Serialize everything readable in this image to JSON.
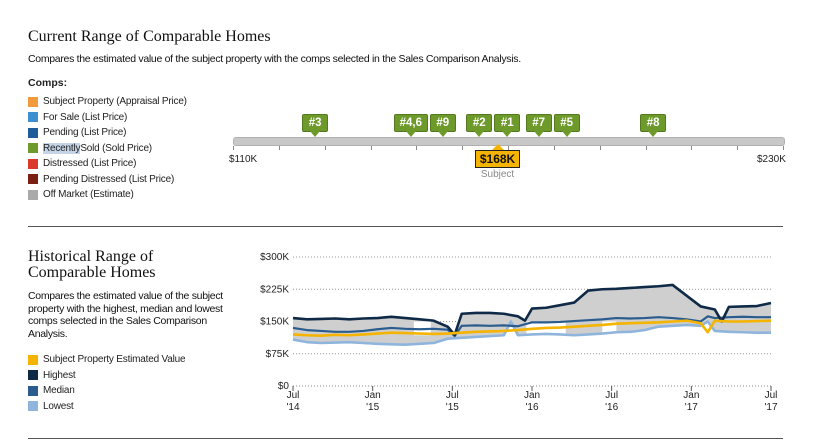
{
  "current": {
    "title": "Current Range of Comparable Homes",
    "subtitle": "Compares the estimated value of the subject property with the comps selected in the Sales Comparison Analysis.",
    "legend_title": "Comps:",
    "legend": [
      {
        "label": "Subject Property (Appraisal Price)",
        "color": "#f39a3c"
      },
      {
        "label": "For Sale (List Price)",
        "color": "#3d8fd1"
      },
      {
        "label": "Pending (List Price)",
        "color": "#1f5c99"
      },
      {
        "label_hl": "Recently",
        "label_rest": " Sold (Sold Price)",
        "color": "#6e9a2b"
      },
      {
        "label": "Distressed (List Price)",
        "color": "#d93a2b"
      },
      {
        "label": "Pending Distressed (List Price)",
        "color": "#7a1f12"
      },
      {
        "label": "Off Market (Estimate)",
        "color": "#aaaaaa"
      }
    ],
    "range_min_label": "$110K",
    "range_max_label": "$230K",
    "range_min": 110,
    "range_max": 230,
    "pins": [
      {
        "label": "#3",
        "value": 128
      },
      {
        "labels": [
          "#4,6",
          "#9"
        ],
        "value": 152
      },
      {
        "labels": [
          "#2",
          "#1"
        ],
        "value": 167
      },
      {
        "labels": [
          "#7",
          "#5"
        ],
        "value": 180
      },
      {
        "label": "#8",
        "value": 202
      }
    ],
    "subject": {
      "label": "$168K",
      "caption": "Subject",
      "value": 168
    }
  },
  "historical": {
    "title_line1": "Historical Range of",
    "title_line2": "Comparable Homes",
    "subtitle": "Compares the estimated value of the subject property with the highest, median and lowest comps selected in the Sales Comparison Analysis.",
    "legend": [
      {
        "label": "Subject Property Estimated Value",
        "color": "#f5b400"
      },
      {
        "label": "Highest",
        "color": "#0e2a47"
      },
      {
        "label": "Median",
        "color": "#2a5c8e"
      },
      {
        "label": "Lowest",
        "color": "#8fb5dc"
      }
    ]
  },
  "chart_data": {
    "type": "line",
    "ylim": [
      0,
      300
    ],
    "y_ticks": [
      0,
      75,
      150,
      225,
      300
    ],
    "y_tick_labels": [
      "$0",
      "$75K",
      "$150K",
      "$225K",
      "$300K"
    ],
    "x_ticks": [
      {
        "month": "Jul",
        "year": "'14"
      },
      {
        "month": "Jan",
        "year": "'15"
      },
      {
        "month": "Jul",
        "year": "'15"
      },
      {
        "month": "Jan",
        "year": "'16"
      },
      {
        "month": "Jul",
        "year": "'16"
      },
      {
        "month": "Jan",
        "year": "'17"
      },
      {
        "month": "Jul",
        "year": "'17"
      }
    ],
    "series": [
      {
        "name": "Highest",
        "color": "#0e2a47",
        "values": [
          [
            0,
            158
          ],
          [
            1,
            155
          ],
          [
            2,
            156
          ],
          [
            3,
            157
          ],
          [
            4,
            155
          ],
          [
            5,
            157
          ],
          [
            6,
            158
          ],
          [
            7,
            161
          ],
          [
            8,
            158
          ],
          [
            9,
            155
          ],
          [
            10,
            152
          ],
          [
            11,
            138
          ],
          [
            11.5,
            119
          ],
          [
            12,
            168
          ],
          [
            13,
            170
          ],
          [
            14,
            170
          ],
          [
            15,
            168
          ],
          [
            16,
            162
          ],
          [
            16.5,
            152
          ],
          [
            17,
            180
          ],
          [
            18,
            182
          ],
          [
            19,
            188
          ],
          [
            20,
            194
          ],
          [
            21,
            222
          ],
          [
            22,
            225
          ],
          [
            23,
            226
          ],
          [
            24,
            228
          ],
          [
            25,
            230
          ],
          [
            26,
            232
          ],
          [
            27,
            235
          ],
          [
            28,
            210
          ],
          [
            29,
            185
          ],
          [
            30,
            178
          ],
          [
            30.5,
            150
          ],
          [
            31,
            184
          ],
          [
            32,
            185
          ],
          [
            33,
            186
          ],
          [
            34,
            193
          ]
        ]
      },
      {
        "name": "Median",
        "color": "#2a5c8e",
        "values": [
          [
            0,
            135
          ],
          [
            1,
            130
          ],
          [
            2,
            128
          ],
          [
            3,
            126
          ],
          [
            4,
            126
          ],
          [
            5,
            128
          ],
          [
            6,
            132
          ],
          [
            7,
            135
          ],
          [
            8,
            133
          ],
          [
            9,
            132
          ],
          [
            10,
            133
          ],
          [
            11,
            131
          ],
          [
            11.5,
            116
          ],
          [
            12,
            140
          ],
          [
            13,
            141
          ],
          [
            14,
            140
          ],
          [
            15,
            141
          ],
          [
            16,
            139
          ],
          [
            17,
            148
          ],
          [
            18,
            148
          ],
          [
            19,
            149
          ],
          [
            20,
            151
          ],
          [
            21,
            153
          ],
          [
            22,
            155
          ],
          [
            23,
            158
          ],
          [
            24,
            157
          ],
          [
            25,
            158
          ],
          [
            26,
            160
          ],
          [
            27,
            158
          ],
          [
            28,
            155
          ],
          [
            29,
            150
          ],
          [
            29.5,
            162
          ],
          [
            30,
            158
          ],
          [
            31,
            160
          ],
          [
            32,
            161
          ],
          [
            33,
            160
          ],
          [
            34,
            160
          ]
        ]
      },
      {
        "name": "Lowest",
        "color": "#8fb5dc",
        "values": [
          [
            0,
            108
          ],
          [
            1,
            102
          ],
          [
            2,
            100
          ],
          [
            3,
            101
          ],
          [
            4,
            102
          ],
          [
            5,
            100
          ],
          [
            6,
            98
          ],
          [
            7,
            97
          ],
          [
            8,
            96
          ],
          [
            9,
            98
          ],
          [
            10,
            100
          ],
          [
            11,
            110
          ],
          [
            12,
            112
          ],
          [
            13,
            114
          ],
          [
            14,
            116
          ],
          [
            15,
            118
          ],
          [
            15.5,
            150
          ],
          [
            16,
            118
          ],
          [
            17,
            120
          ],
          [
            18,
            121
          ],
          [
            19,
            120
          ],
          [
            20,
            118
          ],
          [
            21,
            120
          ],
          [
            22,
            122
          ],
          [
            23,
            125
          ],
          [
            24,
            126
          ],
          [
            25,
            130
          ],
          [
            26,
            138
          ],
          [
            27,
            140
          ],
          [
            28,
            142
          ],
          [
            29,
            140
          ],
          [
            29.5,
            150
          ],
          [
            30,
            128
          ],
          [
            31,
            126
          ],
          [
            32,
            125
          ],
          [
            33,
            124
          ],
          [
            34,
            124
          ]
        ]
      },
      {
        "name": "Subject Property Estimated Value",
        "color": "#f5b400",
        "values": [
          [
            0,
            120
          ],
          [
            1,
            118
          ],
          [
            2,
            117
          ],
          [
            3,
            119
          ],
          [
            4,
            118
          ],
          [
            5,
            120
          ],
          [
            6,
            122
          ],
          [
            7,
            124
          ],
          [
            8,
            123
          ],
          [
            9,
            122
          ],
          [
            10,
            121
          ],
          [
            11,
            122
          ],
          [
            12,
            124
          ],
          [
            13,
            126
          ],
          [
            14,
            127
          ],
          [
            15,
            128
          ],
          [
            16,
            130
          ],
          [
            17,
            133
          ],
          [
            18,
            135
          ],
          [
            19,
            136
          ],
          [
            20,
            138
          ],
          [
            21,
            140
          ],
          [
            22,
            142
          ],
          [
            23,
            145
          ],
          [
            24,
            146
          ],
          [
            25,
            147
          ],
          [
            26,
            148
          ],
          [
            27,
            150
          ],
          [
            28,
            152
          ],
          [
            29,
            146
          ],
          [
            29.5,
            125
          ],
          [
            30,
            152
          ],
          [
            31,
            150
          ],
          [
            32,
            150
          ],
          [
            33,
            151
          ],
          [
            34,
            152
          ]
        ]
      }
    ]
  }
}
